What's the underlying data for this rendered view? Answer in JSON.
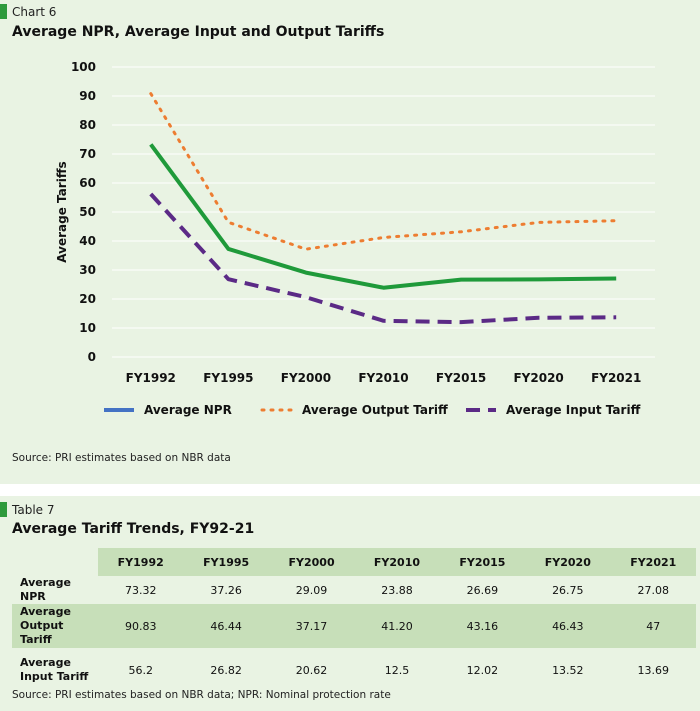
{
  "chart_section": {
    "label": "Chart 6",
    "title": "Average NPR, Average Input and Output Tariffs",
    "source": "Source: PRI estimates based on NBR data"
  },
  "chart_data": {
    "type": "line",
    "title": "Average NPR, Average Input and Output Tariffs",
    "xlabel": "",
    "ylabel": "Average Tariffs",
    "categories": [
      "FY1992",
      "FY1995",
      "FY2000",
      "FY2010",
      "FY2015",
      "FY2020",
      "FY2021"
    ],
    "ylim": [
      0,
      100
    ],
    "yticks": [
      0,
      10,
      20,
      30,
      40,
      50,
      60,
      70,
      80,
      90,
      100
    ],
    "grid": true,
    "legend_position": "bottom",
    "series": [
      {
        "name": "Average NPR",
        "values": [
          73.32,
          37.26,
          29.09,
          23.88,
          26.69,
          26.75,
          27.08
        ],
        "line_color": "#1f9a3a",
        "legend_color": "#4472c4",
        "style": "solid"
      },
      {
        "name": "Average Output Tariff",
        "values": [
          90.83,
          46.44,
          37.17,
          41.2,
          43.16,
          46.43,
          47
        ],
        "line_color": "#ed7d31",
        "legend_color": "#ed7d31",
        "style": "dotted"
      },
      {
        "name": "Average Input Tariff",
        "values": [
          56.2,
          26.82,
          20.62,
          12.5,
          12.02,
          13.52,
          13.69
        ],
        "line_color": "#5b2a86",
        "legend_color": "#5b2a86",
        "style": "dashed"
      }
    ]
  },
  "table_section": {
    "label": "Table 7",
    "title": "Average Tariff Trends, FY92-21",
    "source": "Source: PRI estimates based on NBR data; NPR: Nominal protection rate",
    "columns": [
      "FY1992",
      "FY1995",
      "FY2000",
      "FY2010",
      "FY2015",
      "FY2020",
      "FY2021"
    ],
    "rows": [
      {
        "label": "Average NPR",
        "values": [
          "73.32",
          "37.26",
          "29.09",
          "23.88",
          "26.69",
          "26.75",
          "27.08"
        ]
      },
      {
        "label": "Average Output Tariff",
        "values": [
          "90.83",
          "46.44",
          "37.17",
          "41.20",
          "43.16",
          "46.43",
          "47"
        ]
      },
      {
        "label": "Average Input Tariff",
        "values": [
          "56.2",
          "26.82",
          "20.62",
          "12.5",
          "12.02",
          "13.52",
          "13.69"
        ]
      }
    ]
  },
  "colors": {
    "background": "#e9f3e3",
    "accent": "#2e9a3c",
    "table_band": "#c7dfb9"
  }
}
